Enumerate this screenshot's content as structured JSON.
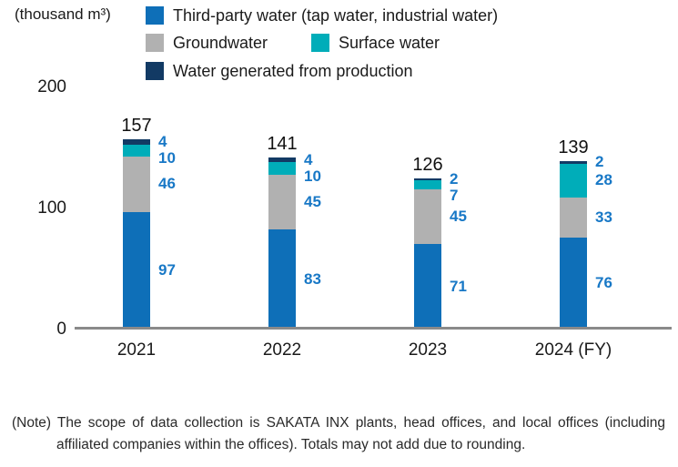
{
  "chart_data": {
    "type": "bar",
    "stacked": true,
    "unit_label": "(thousand m³)",
    "categories": [
      "2021",
      "2022",
      "2023",
      "2024 (FY)"
    ],
    "series": [
      {
        "name": "Third-party water (tap water, industrial water)",
        "color": "#0e6fb8",
        "values": [
          97,
          83,
          71,
          76
        ]
      },
      {
        "name": "Groundwater",
        "color": "#b1b1b1",
        "values": [
          46,
          45,
          45,
          33
        ]
      },
      {
        "name": "Surface water",
        "color": "#00adb9",
        "values": [
          10,
          10,
          7,
          28
        ]
      },
      {
        "name": "Water generated from production",
        "color": "#123a64",
        "values": [
          4,
          4,
          2,
          2
        ]
      }
    ],
    "totals": [
      157,
      141,
      126,
      139
    ],
    "y_ticks": [
      0,
      100,
      200
    ],
    "ylim": [
      0,
      220
    ],
    "grid": false,
    "legend_position": "top",
    "colors": {
      "value_label": "#1878c6",
      "total_label": "#111111",
      "axis_line": "#8a8a8a",
      "text": "#1a1a1a"
    }
  },
  "note": {
    "text": "(Note) The scope of data collection is SAKATA INX plants, head offices, and local offices (including affiliated companies within the offices). Totals may not add due to rounding."
  }
}
